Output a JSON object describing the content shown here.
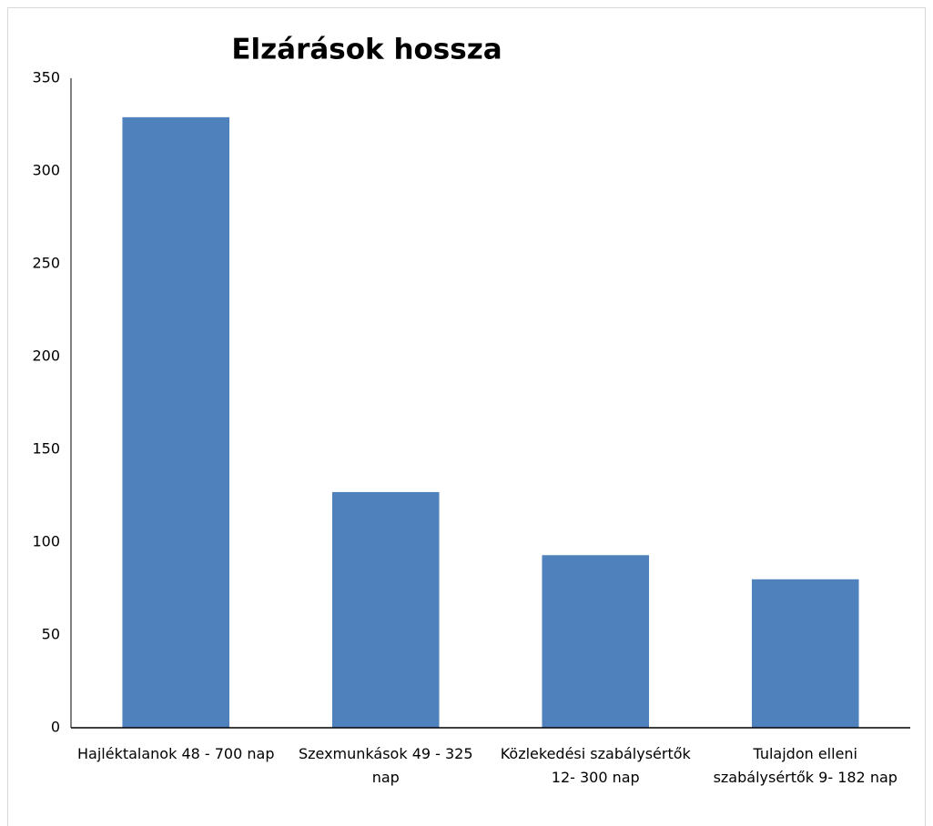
{
  "chart_data": {
    "type": "bar",
    "title": "Elzárások hossza",
    "categories": [
      "Hajléktalanok 48 - 700 nap",
      "Szexmunkások 49 - 325 nap",
      "Közlekedési szabálysértők  12- 300 nap",
      "Tulajdon elleni szabálysértők 9- 182 nap"
    ],
    "values": [
      329,
      127,
      93,
      80
    ],
    "color": "#4f81bd",
    "ylim": [
      0,
      350
    ],
    "yticks": [
      0,
      50,
      100,
      150,
      200,
      250,
      300,
      350
    ],
    "grid": false
  }
}
